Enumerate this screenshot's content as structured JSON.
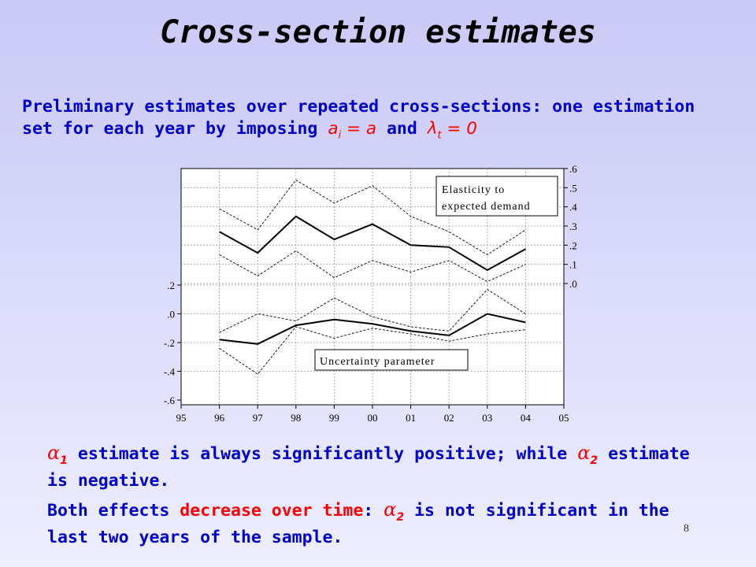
{
  "slide": {
    "title": "Cross-section estimates",
    "intro_text": "Preliminary estimates over repeated cross-sections: one estimation set for each year by imposing",
    "intro_symbols": [
      "a",
      "i",
      " = a",
      " and ",
      "λ",
      "t",
      " = 0"
    ],
    "note1": {
      "symbol": "α",
      "sub": "1",
      "text_a": " estimate is always significantly positive; while ",
      "symbol2": "α",
      "sub2": "2",
      "text_b": " estimate is negative."
    },
    "note2": {
      "text_a": "Both effects ",
      "highlight": "decrease over time",
      "text_b": ": ",
      "symbol": "α",
      "sub": "2",
      "text_c": " is not significant in the last two years of the sample."
    },
    "page_number": "8"
  },
  "chart_data": {
    "type": "line",
    "x_ticks": [
      "95",
      "96",
      "97",
      "98",
      "99",
      "00",
      "01",
      "02",
      "03",
      "04",
      "05"
    ],
    "left_axis_ticks": [
      ".2",
      ".0",
      "-.2",
      "-.4",
      "-.6"
    ],
    "right_axis_ticks": [
      ".6",
      ".5",
      ".4",
      ".3",
      ".2",
      ".1",
      ".0"
    ],
    "annotations": [
      "Elasticity to expected demand",
      "Uncertainty parameter"
    ],
    "panels": [
      {
        "label": "Elasticity to expected demand",
        "axis": "right",
        "ylim": [
          0.0,
          0.6
        ],
        "x": [
          "96",
          "97",
          "98",
          "99",
          "00",
          "01",
          "02",
          "03",
          "04"
        ],
        "estimate": [
          0.27,
          0.16,
          0.35,
          0.23,
          0.31,
          0.2,
          0.19,
          0.07,
          0.18
        ],
        "upper": [
          0.39,
          0.28,
          0.54,
          0.42,
          0.51,
          0.35,
          0.27,
          0.15,
          0.28
        ],
        "lower": [
          0.15,
          0.04,
          0.17,
          0.03,
          0.12,
          0.06,
          0.12,
          0.01,
          0.1
        ]
      },
      {
        "label": "Uncertainty parameter",
        "axis": "left",
        "ylim": [
          -0.6,
          0.2
        ],
        "x": [
          "96",
          "97",
          "98",
          "99",
          "00",
          "01",
          "02",
          "03",
          "04"
        ],
        "estimate": [
          -0.18,
          -0.21,
          -0.08,
          -0.04,
          -0.07,
          -0.12,
          -0.15,
          0.0,
          -0.06
        ],
        "upper": [
          -0.13,
          0.0,
          -0.05,
          0.11,
          -0.02,
          -0.09,
          -0.12,
          0.17,
          0.0
        ],
        "lower": [
          -0.24,
          -0.42,
          -0.09,
          -0.17,
          -0.1,
          -0.14,
          -0.19,
          -0.14,
          -0.11
        ]
      }
    ]
  }
}
